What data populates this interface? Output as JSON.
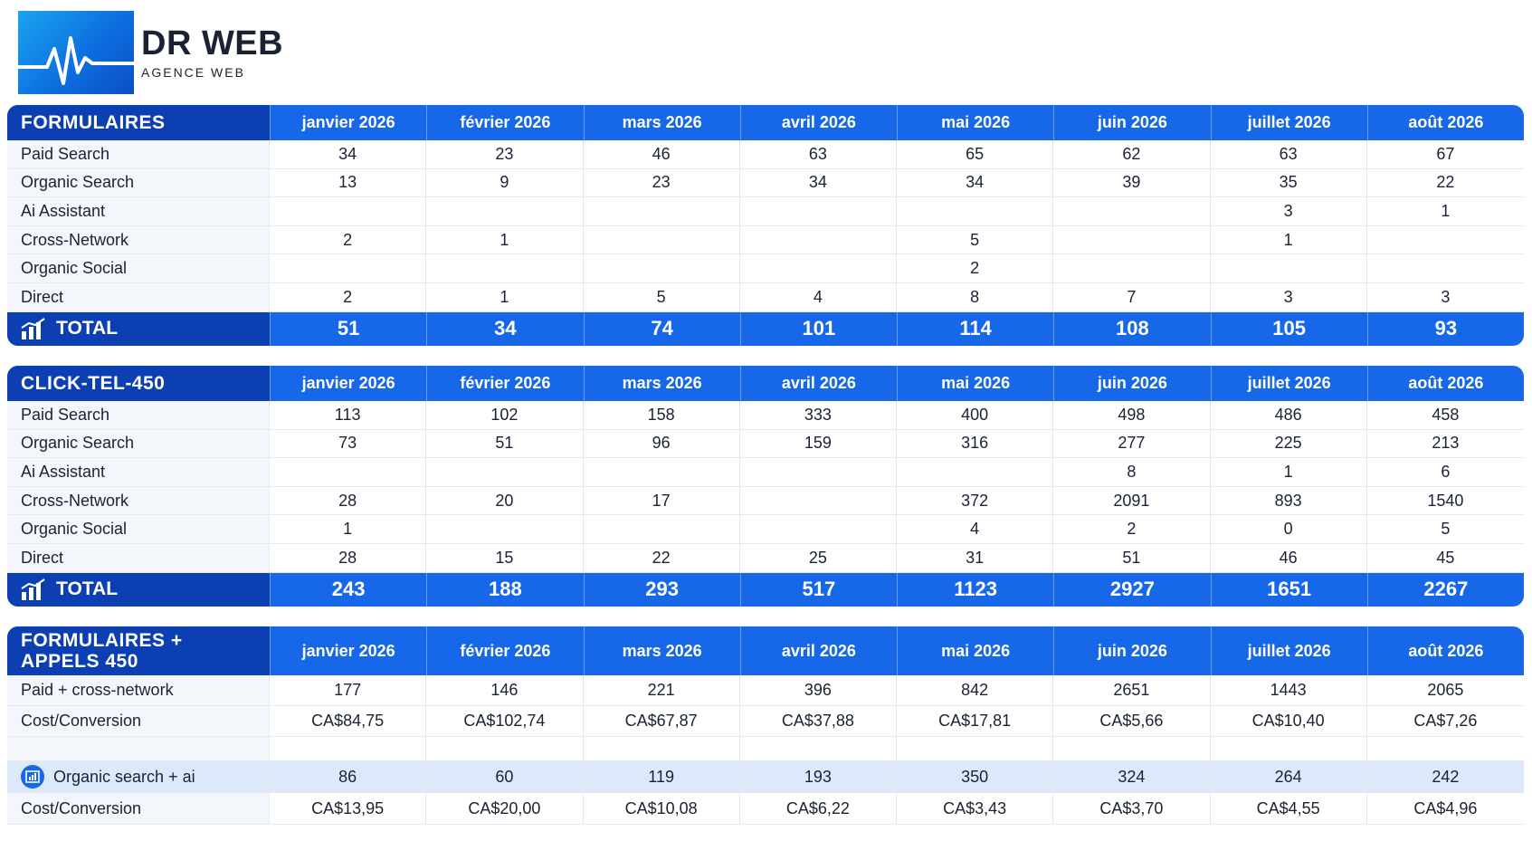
{
  "logo": {
    "title": "DR WEB",
    "subtitle": "AGENCE WEB"
  },
  "months": [
    "janvier 2026",
    "février 2026",
    "mars 2026",
    "avril 2026",
    "mai 2026",
    "juin 2026",
    "juillet 2026",
    "août 2026"
  ],
  "formulaires": {
    "title": "FORMULAIRES",
    "rows": [
      {
        "label": "Paid Search",
        "values": [
          "34",
          "23",
          "46",
          "63",
          "65",
          "62",
          "63",
          "67"
        ]
      },
      {
        "label": "Organic Search",
        "values": [
          "13",
          "9",
          "23",
          "34",
          "34",
          "39",
          "35",
          "22"
        ]
      },
      {
        "label": "Ai Assistant",
        "values": [
          "",
          "",
          "",
          "",
          "",
          "",
          "3",
          "1"
        ]
      },
      {
        "label": "Cross-Network",
        "values": [
          "2",
          "1",
          "",
          "",
          "5",
          "",
          "1",
          ""
        ]
      },
      {
        "label": "Organic Social",
        "values": [
          "",
          "",
          "",
          "",
          "2",
          "",
          "",
          ""
        ]
      },
      {
        "label": "Direct",
        "values": [
          "2",
          "1",
          "5",
          "4",
          "8",
          "7",
          "3",
          "3"
        ]
      }
    ],
    "total": {
      "label": "TOTAL",
      "values": [
        "51",
        "34",
        "74",
        "101",
        "114",
        "108",
        "105",
        "93"
      ]
    }
  },
  "clicktel": {
    "title": "CLICK-TEL-450",
    "rows": [
      {
        "label": "Paid Search",
        "values": [
          "113",
          "102",
          "158",
          "333",
          "400",
          "498",
          "486",
          "458"
        ]
      },
      {
        "label": "Organic Search",
        "values": [
          "73",
          "51",
          "96",
          "159",
          "316",
          "277",
          "225",
          "213"
        ]
      },
      {
        "label": "Ai Assistant",
        "values": [
          "",
          "",
          "",
          "",
          "",
          "8",
          "1",
          "6"
        ]
      },
      {
        "label": "Cross-Network",
        "values": [
          "28",
          "20",
          "17",
          "",
          "372",
          "2091",
          "893",
          "1540"
        ]
      },
      {
        "label": "Organic Social",
        "values": [
          "1",
          "",
          "",
          "",
          "4",
          "2",
          "0",
          "5"
        ]
      },
      {
        "label": "Direct",
        "values": [
          "28",
          "15",
          "22",
          "25",
          "31",
          "51",
          "46",
          "45"
        ]
      }
    ],
    "total": {
      "label": "TOTAL",
      "values": [
        "243",
        "188",
        "293",
        "517",
        "1123",
        "2927",
        "1651",
        "2267"
      ]
    }
  },
  "combined": {
    "title_line1": "FORMULAIRES +",
    "title_line2": "APPELS 450",
    "paid": {
      "label": "Paid + cross-network",
      "values": [
        "177",
        "146",
        "221",
        "396",
        "842",
        "2651",
        "1443",
        "2065"
      ]
    },
    "paid_cost": {
      "label": "Cost/Conversion",
      "values": [
        "CA$84,75",
        "CA$102,74",
        "CA$67,87",
        "CA$37,88",
        "CA$17,81",
        "CA$5,66",
        "CA$10,40",
        "CA$7,26"
      ]
    },
    "organic": {
      "label": "Organic search + ai",
      "values": [
        "86",
        "60",
        "119",
        "193",
        "350",
        "324",
        "264",
        "242"
      ]
    },
    "organic_cost": {
      "label": "Cost/Conversion",
      "values": [
        "CA$13,95",
        "CA$20,00",
        "CA$10,08",
        "CA$6,22",
        "CA$3,43",
        "CA$3,70",
        "CA$4,55",
        "CA$4,96"
      ]
    }
  },
  "colors": {
    "header_dark": "#0c3fb2",
    "header_blue": "#1668e8",
    "label_bg": "#f3f6fb",
    "highlight": "#dce9fb"
  },
  "icons": {
    "total_icon": "bar-chart-icon",
    "organic_icon": "circle-chart-icon"
  }
}
